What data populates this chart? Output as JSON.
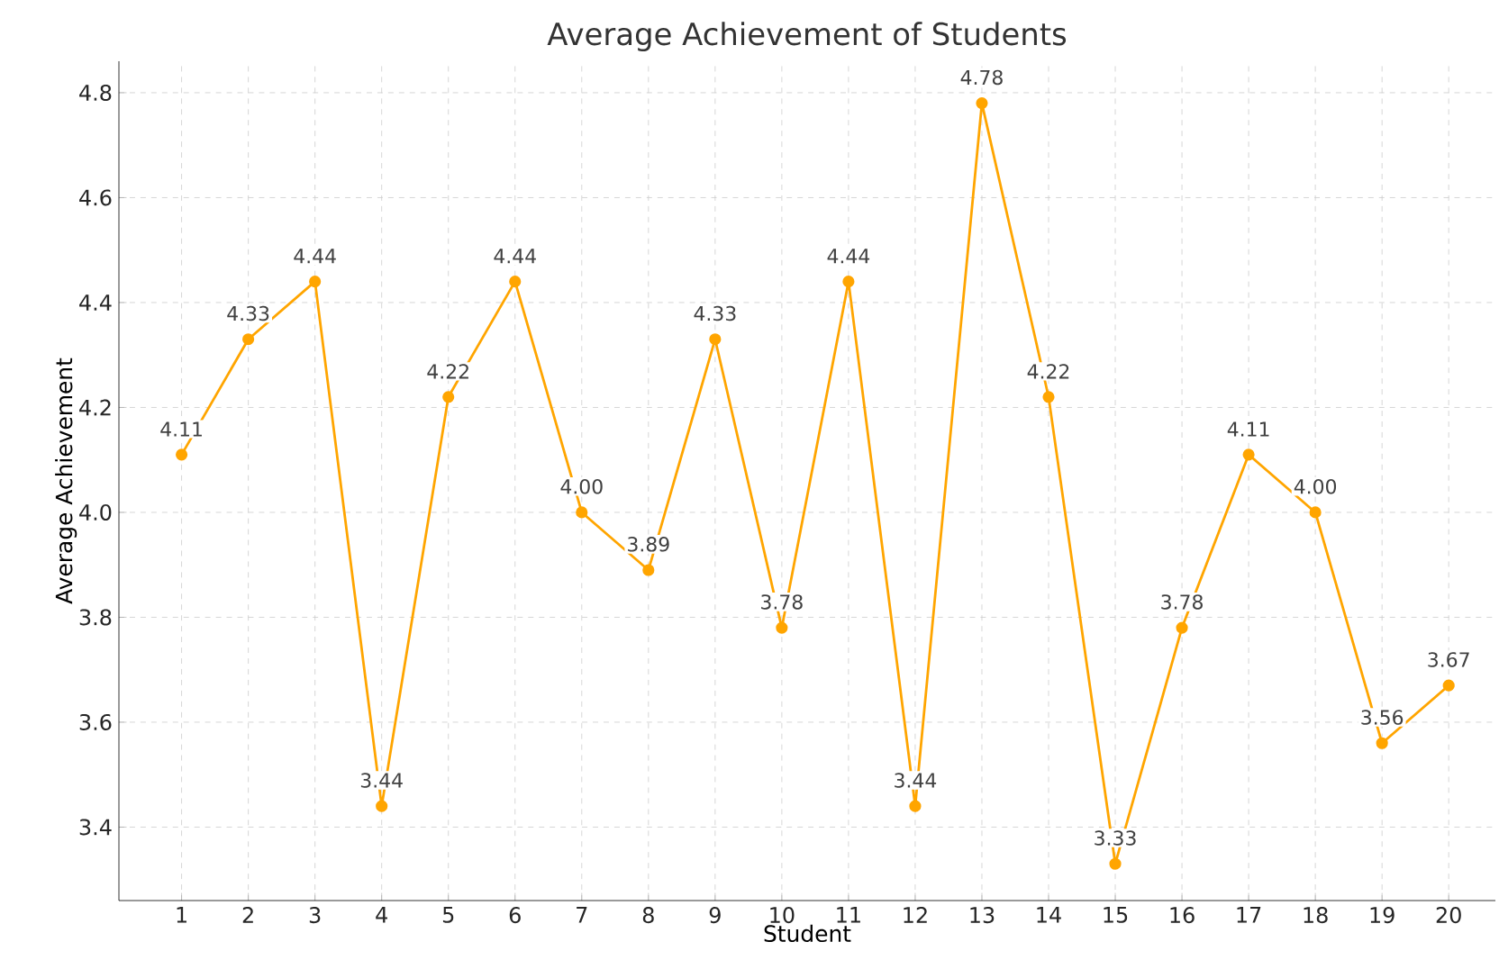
{
  "chart_data": {
    "type": "line",
    "title": "Average Achievement of Students",
    "xlabel": "Student",
    "ylabel": "Average Achievement",
    "x": [
      1,
      2,
      3,
      4,
      5,
      6,
      7,
      8,
      9,
      10,
      11,
      12,
      13,
      14,
      15,
      16,
      17,
      18,
      19,
      20
    ],
    "values": [
      4.11,
      4.33,
      4.44,
      3.44,
      4.22,
      4.44,
      4.0,
      3.89,
      4.33,
      3.78,
      4.44,
      3.44,
      4.78,
      4.22,
      3.33,
      3.78,
      4.11,
      4.0,
      3.56,
      3.67
    ],
    "value_labels": [
      "4.11",
      "4.33",
      "4.44",
      "3.44",
      "4.22",
      "4.44",
      "4.00",
      "3.89",
      "4.33",
      "3.78",
      "4.44",
      "3.44",
      "4.78",
      "4.22",
      "3.33",
      "3.78",
      "4.11",
      "4.00",
      "3.56",
      "3.67"
    ],
    "color": "#ffa500",
    "marker": "circle",
    "line_style": "solid",
    "grid": true,
    "xlim": [
      0.06,
      20.7
    ],
    "ylim": [
      3.26,
      4.86
    ],
    "xticks": [
      1,
      2,
      3,
      4,
      5,
      6,
      7,
      8,
      9,
      10,
      11,
      12,
      13,
      14,
      15,
      16,
      17,
      18,
      19,
      20
    ],
    "yticks": [
      {
        "value": 3.4,
        "label": "3.4"
      },
      {
        "value": 3.6,
        "label": "3.6"
      },
      {
        "value": 3.8,
        "label": "3.8"
      },
      {
        "value": 4.0,
        "label": "4.0"
      },
      {
        "value": 4.2,
        "label": "4.2"
      },
      {
        "value": 4.4,
        "label": "4.4"
      },
      {
        "value": 4.6,
        "label": "4.6"
      },
      {
        "value": 4.8,
        "label": "4.8"
      }
    ]
  }
}
